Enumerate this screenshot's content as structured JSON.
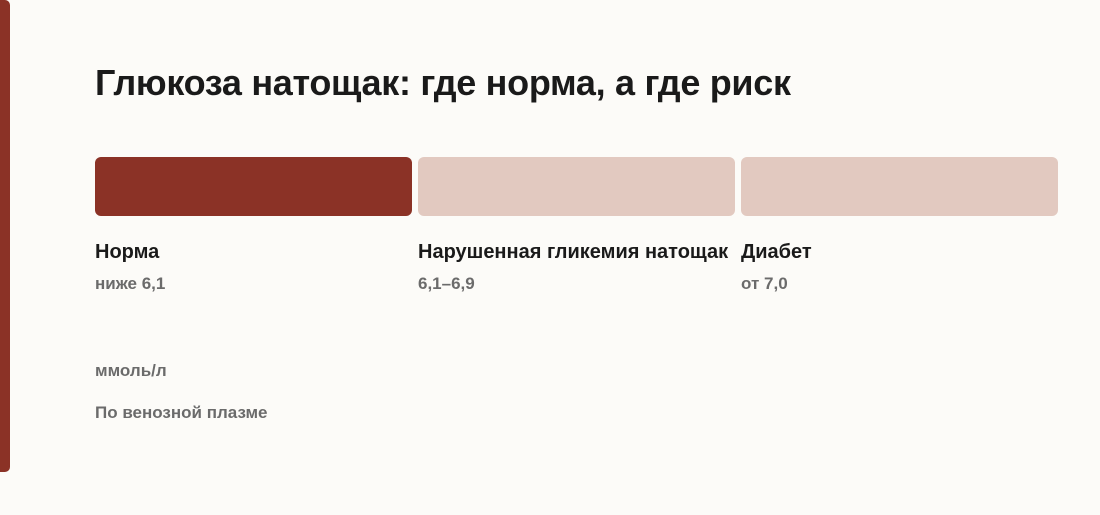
{
  "title": "Глюкоза натощак: где норма, а где риск",
  "segments": [
    {
      "label": "Норма",
      "range": "ниже 6,1",
      "color": "#8b3226"
    },
    {
      "label": "Нарушенная гликемия натощак",
      "range": "6,1–6,9",
      "color": "#e2c9c0"
    },
    {
      "label": "Диабет",
      "range": "от 7,0",
      "color": "#e2c9c0"
    }
  ],
  "unit": "ммоль/л",
  "note": "По венозной плазме"
}
